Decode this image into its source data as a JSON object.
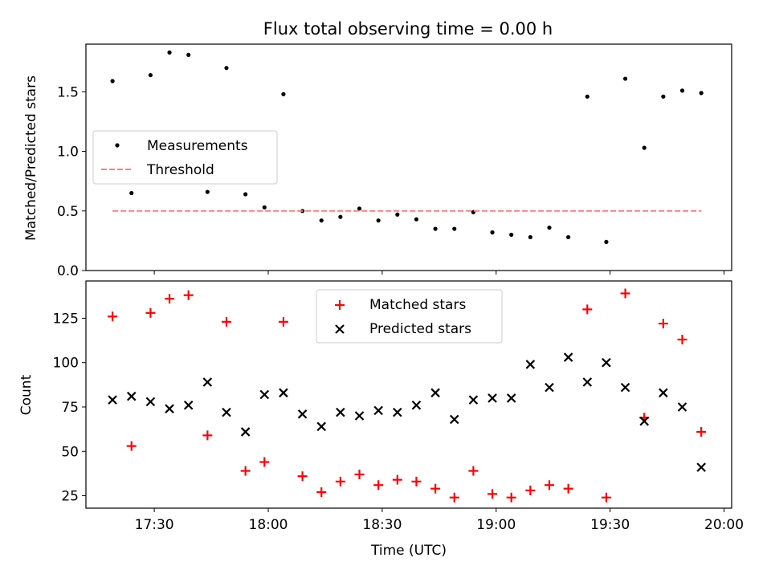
{
  "chart_data": {
    "title": "Flux total observing time = 0.00 h",
    "xlabel": "Time (UTC)",
    "x_ticks": [
      "17:30",
      "18:00",
      "18:30",
      "19:00",
      "19:30",
      "20:00"
    ],
    "x_range": [
      "17:12",
      "20:02"
    ],
    "panels": [
      {
        "type": "scatter",
        "ylabel": "Matched/Predicted stars",
        "ylim": [
          0,
          1.9
        ],
        "yticks": [
          "0.0",
          "0.5",
          "1.0",
          "1.5"
        ],
        "legend_position": "center-left",
        "series": [
          {
            "name": "Measurements",
            "marker": "dot",
            "color": "#000000",
            "x": [
              "17:19",
              "17:24",
              "17:29",
              "17:34",
              "17:39",
              "17:44",
              "17:49",
              "17:54",
              "17:59",
              "18:04",
              "18:09",
              "18:14",
              "18:19",
              "18:24",
              "18:29",
              "18:34",
              "18:39",
              "18:44",
              "18:49",
              "18:54",
              "18:59",
              "19:04",
              "19:09",
              "19:14",
              "19:19",
              "19:24",
              "19:29",
              "19:34",
              "19:39",
              "19:44",
              "19:49",
              "19:54"
            ],
            "y": [
              1.59,
              0.65,
              1.64,
              1.83,
              1.81,
              0.66,
              1.7,
              0.64,
              0.53,
              1.48,
              0.5,
              0.42,
              0.45,
              0.52,
              0.42,
              0.47,
              0.43,
              0.35,
              0.35,
              0.49,
              0.32,
              0.3,
              0.28,
              0.36,
              0.28,
              1.46,
              0.24,
              1.61,
              1.03,
              1.46,
              1.51,
              1.49
            ]
          },
          {
            "name": "Threshold",
            "type": "line",
            "style": "dashed",
            "color": "#ff7f7f",
            "x": [
              "17:19",
              "19:54"
            ],
            "y": [
              0.5,
              0.5
            ]
          }
        ]
      },
      {
        "type": "scatter",
        "ylabel": "Count",
        "ylim": [
          18,
          146
        ],
        "yticks": [
          "25",
          "50",
          "75",
          "100",
          "125"
        ],
        "legend_position": "top-center",
        "series": [
          {
            "name": "Matched stars",
            "marker": "plus",
            "color": "#ff0000",
            "x": [
              "17:19",
              "17:24",
              "17:29",
              "17:34",
              "17:39",
              "17:44",
              "17:49",
              "17:54",
              "17:59",
              "18:04",
              "18:09",
              "18:14",
              "18:19",
              "18:24",
              "18:29",
              "18:34",
              "18:39",
              "18:44",
              "18:49",
              "18:54",
              "18:59",
              "19:04",
              "19:09",
              "19:14",
              "19:19",
              "19:24",
              "19:29",
              "19:34",
              "19:39",
              "19:44",
              "19:49",
              "19:54"
            ],
            "y": [
              126,
              53,
              128,
              136,
              138,
              59,
              123,
              39,
              44,
              123,
              36,
              27,
              33,
              37,
              31,
              34,
              33,
              29,
              24,
              39,
              26,
              24,
              28,
              31,
              29,
              130,
              24,
              139,
              69,
              122,
              113,
              61
            ]
          },
          {
            "name": "Predicted stars",
            "marker": "x",
            "color": "#000000",
            "x": [
              "17:19",
              "17:24",
              "17:29",
              "17:34",
              "17:39",
              "17:44",
              "17:49",
              "17:54",
              "17:59",
              "18:04",
              "18:09",
              "18:14",
              "18:19",
              "18:24",
              "18:29",
              "18:34",
              "18:39",
              "18:44",
              "18:49",
              "18:54",
              "18:59",
              "19:04",
              "19:09",
              "19:14",
              "19:19",
              "19:24",
              "19:29",
              "19:34",
              "19:39",
              "19:44",
              "19:49",
              "19:54"
            ],
            "y": [
              79,
              81,
              78,
              74,
              76,
              89,
              72,
              61,
              82,
              83,
              71,
              64,
              72,
              70,
              73,
              72,
              76,
              83,
              68,
              79,
              80,
              80,
              99,
              86,
              103,
              89,
              100,
              86,
              67,
              83,
              75,
              41
            ]
          }
        ]
      }
    ]
  }
}
